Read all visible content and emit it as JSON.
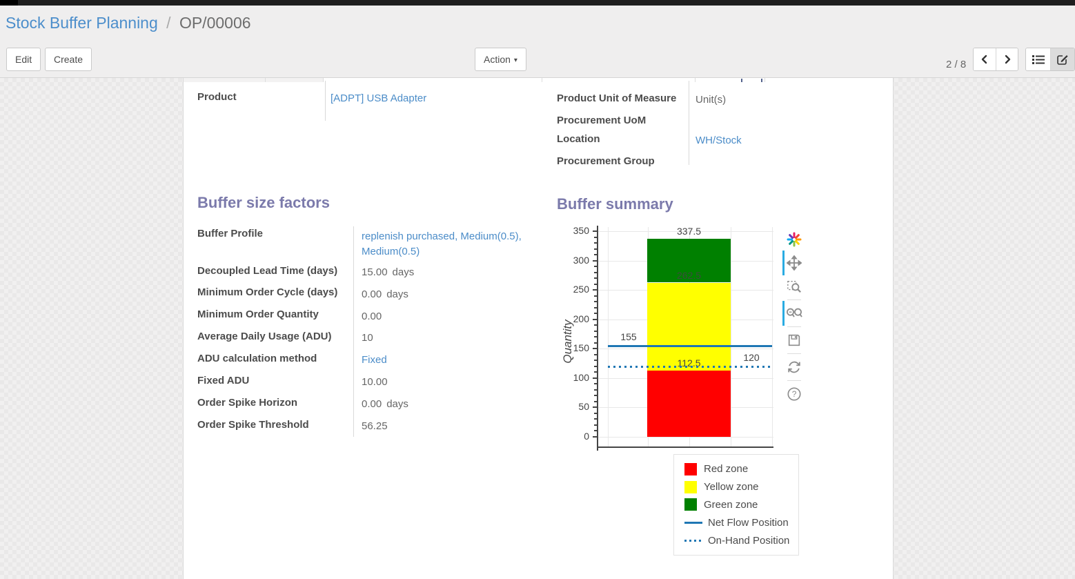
{
  "breadcrumb": {
    "parent": "Stock Buffer Planning",
    "separator": "/",
    "current": "OP/00006"
  },
  "control_panel": {
    "edit_label": "Edit",
    "create_label": "Create",
    "action_label": "Action",
    "pager_text": "2 / 8"
  },
  "form": {
    "product_group_left": {
      "label": "Product",
      "value": "[ADPT] USB Adapter"
    },
    "product_group_right": [
      {
        "label": "Product Unit of Measure",
        "value": "Unit(s)"
      },
      {
        "label": "Procurement UoM",
        "value": ""
      },
      {
        "label": "Location",
        "value": "WH/Stock"
      },
      {
        "label": "Procurement Group",
        "value": ""
      }
    ],
    "buffer_factors": {
      "title": "Buffer size factors",
      "rows": [
        {
          "label": "Buffer Profile",
          "value": "replenish purchased, Medium(0.5), Medium(0.5)",
          "suffix": ""
        },
        {
          "label": "Decoupled Lead Time (days)",
          "value": "15.00",
          "suffix": "days"
        },
        {
          "label": "Minimum Order Cycle (days)",
          "value": "0.00",
          "suffix": "days"
        },
        {
          "label": "Minimum Order Quantity",
          "value": "0.00",
          "suffix": ""
        },
        {
          "label": "Average Daily Usage (ADU)",
          "value": "10",
          "suffix": ""
        },
        {
          "label": "ADU calculation method",
          "value": "Fixed",
          "suffix": ""
        },
        {
          "label": "Fixed ADU",
          "value": "10.00",
          "suffix": ""
        },
        {
          "label": "Order Spike Horizon",
          "value": "0.00",
          "suffix": "days"
        },
        {
          "label": "Order Spike Threshold",
          "value": "56.25",
          "suffix": ""
        }
      ]
    },
    "buffer_summary_title": "Buffer summary"
  },
  "chart_data": {
    "type": "bar",
    "title": "",
    "xlabel": "",
    "ylabel": "Quantity",
    "ylim": [
      0,
      350
    ],
    "ytick_major": 50,
    "ytick_minor": 10,
    "grid": true,
    "series": [
      {
        "name": "Red zone",
        "color": "#ff0000",
        "from": 0,
        "to": 112.5
      },
      {
        "name": "Yellow zone",
        "color": "#ffff00",
        "from": 112.5,
        "to": 262.5
      },
      {
        "name": "Green zone",
        "color": "#008000",
        "from": 262.5,
        "to": 337.5
      }
    ],
    "reference_lines": [
      {
        "name": "Net Flow Position",
        "value": 155,
        "style": "solid",
        "color": "#1f77b4",
        "label": "155",
        "label_anchor": "left"
      },
      {
        "name": "On-Hand Position",
        "value": 120,
        "style": "dotted",
        "color": "#1f77b4",
        "label": "120",
        "label_anchor": "right"
      }
    ],
    "bar_labels": [
      {
        "text": "337.5",
        "value": 337.5,
        "color": "#444444"
      },
      {
        "text": "262.5",
        "value": 262.5,
        "color": "#3c4c3c"
      },
      {
        "text": "112.5",
        "value": 112.5,
        "color": "#444444"
      }
    ],
    "legend": [
      "Red zone",
      "Yellow zone",
      "Green zone",
      "Net Flow Position",
      "On-Hand Position"
    ],
    "legend_position": "bottom-right"
  },
  "colors": {
    "section_heading": "#7b7aab",
    "link": "#4b8cc8",
    "net_flow_line": "#1f77b4",
    "modebar_accent": "#29abe2"
  }
}
